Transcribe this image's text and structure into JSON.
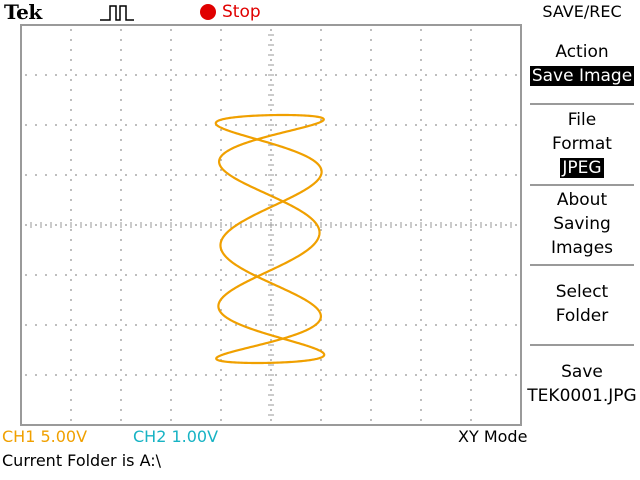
{
  "header": {
    "brand": "Tek",
    "run_status": "Stop"
  },
  "icons": {
    "trigger": "trigger-pulse-icon",
    "stop": "stop-dot-icon"
  },
  "menu": {
    "title": "SAVE/REC",
    "action": {
      "label": "Action",
      "value": "Save Image"
    },
    "file_format": {
      "label_line1": "File",
      "label_line2": "Format",
      "value": "JPEG"
    },
    "about": {
      "line1": "About",
      "line2": "Saving",
      "line3": "Images"
    },
    "select_folder": {
      "line1": "Select",
      "line2": "Folder"
    },
    "save": {
      "line1": "Save",
      "line2": "TEK0001.JPG"
    }
  },
  "status": {
    "ch1": "CH1  5.00V",
    "ch2": "CH2  1.00V",
    "mode": "XY Mode",
    "folder": "Current Folder is A:\\"
  },
  "colors": {
    "trace": "#f0a000",
    "ch1": "#f0a000",
    "ch2": "#17b3c4",
    "stop": "#e00000",
    "highlight_bg": "#000000",
    "highlight_fg": "#ffffff"
  }
}
